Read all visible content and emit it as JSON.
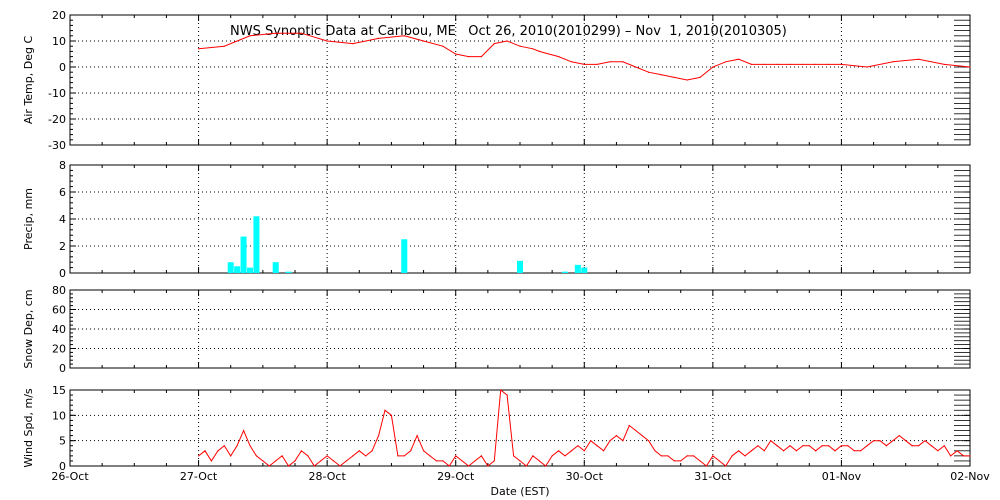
{
  "title": "NWS Synoptic Data at Caribou, ME   Oct 26, 2010(2010299) – Nov  1, 2010(2010305)",
  "colors": {
    "line": "#ff0000",
    "bar": "#00ffff",
    "axis": "#000000",
    "grid": "#000000"
  },
  "chart_data": [
    {
      "type": "line",
      "ylabel": "Air Temp, Deg C",
      "xlabel": "",
      "ylim": [
        -30,
        20
      ],
      "yticks": [
        20,
        10,
        0,
        -10,
        -20,
        -30
      ],
      "grid": "dotted",
      "x_day_offset": [
        1.0,
        1.2,
        1.4,
        1.6,
        1.8,
        2.0,
        2.2,
        2.4,
        2.6,
        2.75,
        2.9,
        3.0,
        3.1,
        3.2,
        3.3,
        3.4,
        3.5,
        3.6,
        3.65,
        3.8,
        3.9,
        4.0,
        4.1,
        4.2,
        4.3,
        4.4,
        4.5,
        4.6,
        4.7,
        4.8,
        4.9,
        5.0,
        5.1,
        5.2,
        5.3,
        5.4,
        5.5,
        5.6,
        5.7,
        5.8,
        5.9,
        6.0,
        6.2,
        6.4,
        6.6,
        6.8,
        7.0
      ],
      "values": [
        7,
        8,
        12,
        13,
        13,
        10,
        9,
        11,
        12,
        10,
        8,
        5,
        4,
        4,
        9,
        10,
        8,
        7,
        6,
        4,
        2,
        1,
        1,
        2,
        2,
        0,
        -2,
        -3,
        -4,
        -5,
        -4,
        0,
        2,
        3,
        1,
        1,
        1,
        1,
        1,
        1,
        1,
        1,
        0,
        2,
        3,
        1,
        0
      ]
    },
    {
      "type": "bar",
      "ylabel": "Precip, mm",
      "xlabel": "",
      "ylim": [
        0,
        8
      ],
      "yticks": [
        8,
        6,
        4,
        2,
        0
      ],
      "grid": "dotted",
      "x_day_offset": [
        1.25,
        1.3,
        1.35,
        1.4,
        1.45,
        1.6,
        1.7,
        2.6,
        3.5,
        3.85,
        3.95,
        4.0
      ],
      "values": [
        0.8,
        0.5,
        2.7,
        0.4,
        4.2,
        0.8,
        0.1,
        2.5,
        0.9,
        0.1,
        0.6,
        0.4
      ]
    },
    {
      "type": "line",
      "ylabel": "Snow Dep, cm",
      "xlabel": "",
      "ylim": [
        0,
        80
      ],
      "yticks": [
        80,
        60,
        40,
        20,
        0
      ],
      "grid": "dotted",
      "x_day_offset": [],
      "values": []
    },
    {
      "type": "line",
      "ylabel": "Wind Spd, m/s",
      "xlabel": "Date (EST)",
      "ylim": [
        0,
        15
      ],
      "yticks": [
        15,
        10,
        5,
        0
      ],
      "grid": "dotted",
      "x_day_offset": [
        1.0,
        1.05,
        1.1,
        1.15,
        1.2,
        1.25,
        1.3,
        1.35,
        1.4,
        1.45,
        1.5,
        1.55,
        1.6,
        1.65,
        1.7,
        1.75,
        1.8,
        1.85,
        1.9,
        1.95,
        2.0,
        2.05,
        2.1,
        2.15,
        2.2,
        2.25,
        2.3,
        2.35,
        2.4,
        2.45,
        2.5,
        2.55,
        2.6,
        2.65,
        2.7,
        2.75,
        2.8,
        2.85,
        2.9,
        2.95,
        3.0,
        3.05,
        3.1,
        3.15,
        3.2,
        3.25,
        3.3,
        3.35,
        3.4,
        3.45,
        3.5,
        3.55,
        3.6,
        3.65,
        3.7,
        3.75,
        3.8,
        3.85,
        3.9,
        3.95,
        4.0,
        4.05,
        4.1,
        4.15,
        4.2,
        4.25,
        4.3,
        4.35,
        4.4,
        4.45,
        4.5,
        4.55,
        4.6,
        4.65,
        4.7,
        4.75,
        4.8,
        4.85,
        4.9,
        4.95,
        5.0,
        5.05,
        5.1,
        5.15,
        5.2,
        5.25,
        5.3,
        5.35,
        5.4,
        5.45,
        5.5,
        5.55,
        5.6,
        5.65,
        5.7,
        5.75,
        5.8,
        5.85,
        5.9,
        5.95,
        6.0,
        6.05,
        6.1,
        6.15,
        6.2,
        6.25,
        6.3,
        6.35,
        6.4,
        6.45,
        6.5,
        6.55,
        6.6,
        6.65,
        6.7,
        6.75,
        6.8,
        6.85,
        6.9,
        6.95,
        7.0
      ],
      "values": [
        2,
        3,
        1,
        3,
        4,
        2,
        4,
        7,
        4,
        2,
        1,
        0,
        1,
        2,
        0,
        1,
        3,
        2,
        0,
        1,
        2,
        1,
        0,
        1,
        2,
        3,
        2,
        3,
        6,
        11,
        10,
        2,
        2,
        3,
        6,
        3,
        2,
        1,
        1,
        0,
        2,
        1,
        0,
        1,
        2,
        0,
        1,
        15,
        14,
        2,
        1,
        0,
        2,
        1,
        0,
        2,
        3,
        2,
        3,
        4,
        3,
        5,
        4,
        3,
        5,
        6,
        5,
        8,
        7,
        6,
        5,
        3,
        2,
        2,
        1,
        1,
        2,
        2,
        1,
        0,
        2,
        1,
        0,
        2,
        3,
        2,
        3,
        4,
        3,
        5,
        4,
        3,
        4,
        3,
        4,
        4,
        3,
        4,
        4,
        3,
        4,
        4,
        3,
        3,
        4,
        5,
        5,
        4,
        5,
        6,
        5,
        4,
        4,
        5,
        4,
        3,
        4,
        2,
        3,
        2,
        2
      ]
    }
  ],
  "x_axis": {
    "tick_labels": [
      "26-Oct",
      "27-Oct",
      "28-Oct",
      "29-Oct",
      "30-Oct",
      "31-Oct",
      "01-Nov",
      "02-Nov"
    ],
    "xlim_days": [
      0,
      7
    ]
  }
}
